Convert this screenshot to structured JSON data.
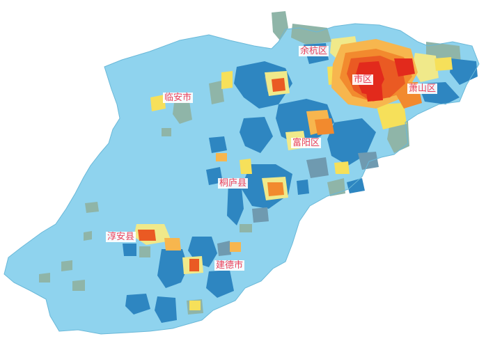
{
  "map": {
    "colors": {
      "base": "#8fd3ee",
      "blue_dark": "#2e86c1",
      "blue_mid": "#4aa3d8",
      "gray_green": "#8fb5a8",
      "gray_blue": "#6f9ab0",
      "yellow_pale": "#f0e98a",
      "yellow": "#f6e05a",
      "orange_light": "#f7b64e",
      "orange": "#f28a2e",
      "red_orange": "#ea5a23",
      "red": "#e22a1c"
    },
    "labels": {
      "yuhang": "余杭区",
      "shiqu": "市区",
      "xiaoshan": "萧山区",
      "linan": "临安市",
      "fuyang": "富阳区",
      "tonglu": "桐庐县",
      "chunan": "淳安县",
      "jiande": "建德市"
    }
  }
}
